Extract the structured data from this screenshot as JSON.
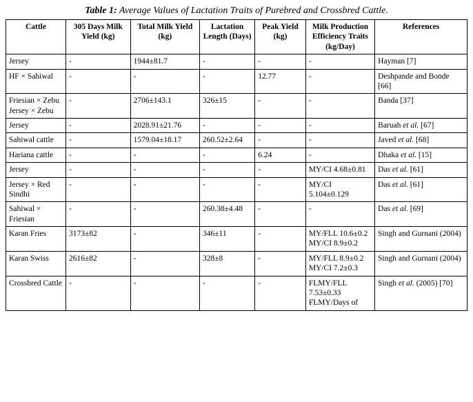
{
  "title_prefix": "Table 1:",
  "title_rest": " Average Values of Lactation Traits of Purebred and Crossbred Cattle.",
  "columns": [
    "Cattle",
    "305 Days Milk Yield (kg)",
    "Total Milk Yield (kg)",
    "Lactation Length (Days)",
    "Peak Yield (kg)",
    "Milk Production Efficiency Traits (kg/Day)",
    "References"
  ],
  "rows": [
    {
      "cattle": "Jersey",
      "d305": "-",
      "total": "1944±81.7",
      "lact": "-",
      "peak": "-",
      "eff": "-",
      "ref": "Hayman [7]"
    },
    {
      "cattle": "HF × Sahiwal",
      "d305": "-",
      "total": "-",
      "lact": "-",
      "peak": "12.77",
      "eff": "-",
      "ref": "Deshpande and Bonde [66]"
    },
    {
      "cattle": "Friesian × Zebu\nJersey × Zebu",
      "d305": "-",
      "total": "2706±143.1",
      "lact": "326±15",
      "peak": "-",
      "eff": "-",
      "ref": "Banda [37]"
    },
    {
      "cattle": "Jersey",
      "d305": "-",
      "total": "2028.91±21.76",
      "lact": "-",
      "peak": "-",
      "eff": "-",
      "ref": "Baruah et al. [67]"
    },
    {
      "cattle": "Sahiwal cattle",
      "d305": "-",
      "total": "1579.04±18.17",
      "lact": "260.52±2.64",
      "peak": "-",
      "eff": "-",
      "ref": "Javed et al. [68]"
    },
    {
      "cattle": "Hariana cattle",
      "d305": "-",
      "total": "-",
      "lact": "-",
      "peak": "6.24",
      "eff": "-",
      "ref": "Dhaka et al. [15]"
    },
    {
      "cattle": "Jersey",
      "d305": "-",
      "total": "-",
      "lact": "-",
      "peak": "-",
      "eff": "MY/CI 4.68±0.81",
      "ref": "Das et al. [61]"
    },
    {
      "cattle": "Jersey × Red Sindhi",
      "d305": "-",
      "total": "-",
      "lact": "-",
      "peak": "-",
      "eff": "MY/CI 5.104±0.129",
      "ref": "Das et al. [61]"
    },
    {
      "cattle": "Sahiwal × Friesian",
      "d305": "-",
      "total": "-",
      "lact": "260.38±4.48",
      "peak": "-",
      "eff": "-",
      "ref": "Das et al. [69]"
    },
    {
      "cattle": "Karan Fries",
      "d305": "3173±82",
      "total": "-",
      "lact": "346±11",
      "peak": "-",
      "eff": "MY/FLL 10.6±0.2 MY/CI 8.9±0.2",
      "ref": "Singh and Gurnani (2004)"
    },
    {
      "cattle": "Karan Swiss",
      "d305": "2616±82",
      "total": "-",
      "lact": "328±8",
      "peak": "-",
      "eff": "MY/FLL 8.9±0.2 MY/CI 7.2±0.3",
      "ref": "Singh and Gurnani (2004)"
    },
    {
      "cattle": "Crossbred Cattle",
      "d305": "-",
      "total": "-",
      "lact": "-",
      "peak": "-",
      "eff": "FLMY/FLL 7.53±0.33 FLMY/Days of",
      "ref": "Singh et al. (2005) [70]"
    }
  ]
}
